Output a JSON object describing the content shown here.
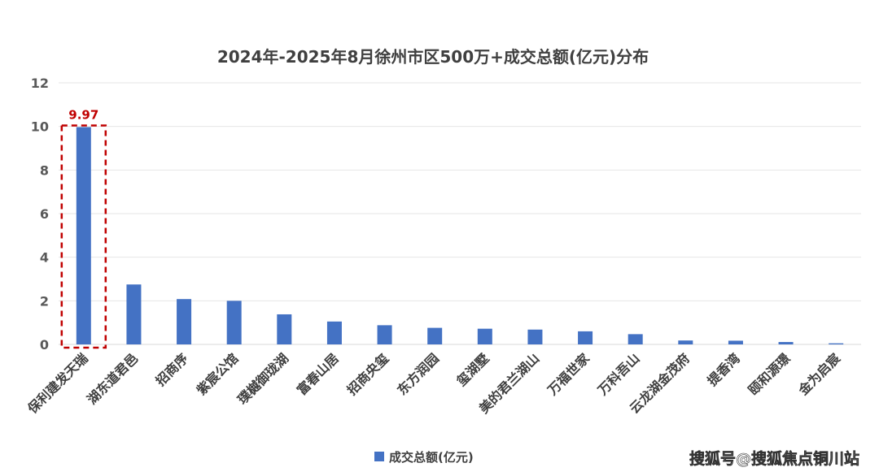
{
  "chart_data": {
    "type": "bar",
    "title": "2024年-2025年8月徐州市区500万+成交总额(亿元)分布",
    "categories": [
      "保利建发天瑞",
      "湖东道君邑",
      "招商序",
      "紫宸公馆",
      "璞樾御珑湖",
      "富春山居",
      "招商央玺",
      "东方润园",
      "玺湖墅",
      "美的君兰湖山",
      "万福世家",
      "万科吾山",
      "云龙湖金茂府",
      "提香湾",
      "颐和源璟",
      "金为启宸"
    ],
    "series": [
      {
        "name": "成交总额(亿元)",
        "color": "#4472c4",
        "values": [
          9.97,
          2.75,
          2.08,
          2.0,
          1.38,
          1.05,
          0.88,
          0.76,
          0.72,
          0.68,
          0.6,
          0.47,
          0.18,
          0.17,
          0.11,
          0.05
        ]
      }
    ],
    "ylim": [
      0,
      12
    ],
    "yticks": [
      0,
      2,
      4,
      6,
      8,
      10,
      12
    ],
    "grid": true,
    "legend": "bottom",
    "annotation": {
      "category": "保利建发天瑞",
      "label": "9.97",
      "color": "#c00000",
      "style": "dashed-box"
    }
  },
  "watermark": "搜狐号@搜狐焦点铜川站"
}
